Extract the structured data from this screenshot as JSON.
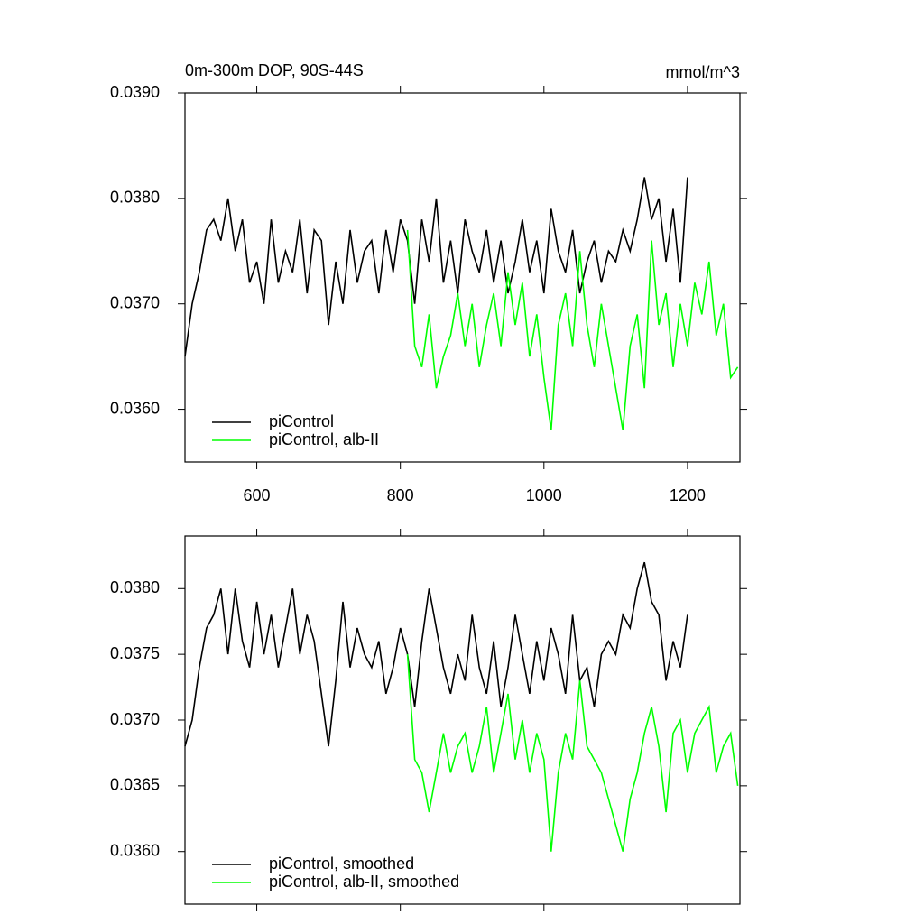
{
  "chart_data": [
    {
      "type": "line",
      "title": "0m-300m DOP, 90S-44S",
      "units": "mmol/m^3",
      "x": [
        500,
        510,
        520,
        530,
        540,
        550,
        560,
        570,
        580,
        590,
        600,
        610,
        620,
        630,
        640,
        650,
        660,
        670,
        680,
        690,
        700,
        710,
        720,
        730,
        740,
        750,
        760,
        770,
        780,
        790,
        800,
        810,
        820,
        830,
        840,
        850,
        860,
        870,
        880,
        890,
        900,
        910,
        920,
        930,
        940,
        950,
        960,
        970,
        980,
        990,
        1000,
        1010,
        1020,
        1030,
        1040,
        1050,
        1060,
        1070,
        1080,
        1090,
        1100,
        1110,
        1120,
        1130,
        1140,
        1150,
        1160,
        1170,
        1180,
        1190,
        1200,
        1210,
        1220,
        1230,
        1240,
        1250,
        1260,
        1270
      ],
      "series": [
        {
          "name": "piControl",
          "color": "#000000",
          "values": [
            0.0365,
            0.037,
            0.0373,
            0.0377,
            0.0378,
            0.0376,
            0.038,
            0.0375,
            0.0378,
            0.0372,
            0.0374,
            0.037,
            0.0378,
            0.0372,
            0.0375,
            0.0373,
            0.0378,
            0.0371,
            0.0377,
            0.0376,
            0.0368,
            0.0374,
            0.037,
            0.0377,
            0.0372,
            0.0375,
            0.0376,
            0.0371,
            0.0377,
            0.0373,
            0.0378,
            0.0376,
            0.037,
            0.0378,
            0.0374,
            0.038,
            0.0372,
            0.0376,
            0.0371,
            0.0378,
            0.0375,
            0.0373,
            0.0377,
            0.0372,
            0.0376,
            0.0371,
            0.0374,
            0.0378,
            0.0373,
            0.0376,
            0.0371,
            0.0379,
            0.0375,
            0.0373,
            0.0377,
            0.0371,
            0.0374,
            0.0376,
            0.0372,
            0.0375,
            0.0374,
            0.0377,
            0.0375,
            0.0378,
            0.0382,
            0.0378,
            0.038,
            0.0374,
            0.0379,
            0.0372,
            0.0382,
            null,
            null,
            null,
            null,
            null,
            null,
            null
          ]
        },
        {
          "name": "piControl, alb-II",
          "color": "#00ff00",
          "values": [
            null,
            null,
            null,
            null,
            null,
            null,
            null,
            null,
            null,
            null,
            null,
            null,
            null,
            null,
            null,
            null,
            null,
            null,
            null,
            null,
            null,
            null,
            null,
            null,
            null,
            null,
            null,
            null,
            null,
            null,
            null,
            0.0377,
            0.0366,
            0.0364,
            0.0369,
            0.0362,
            0.0365,
            0.0367,
            0.0371,
            0.0366,
            0.037,
            0.0364,
            0.0368,
            0.0371,
            0.0366,
            0.0373,
            0.0368,
            0.0372,
            0.0365,
            0.0369,
            0.0363,
            0.0358,
            0.0368,
            0.0371,
            0.0366,
            0.0375,
            0.0368,
            0.0364,
            0.037,
            0.0366,
            0.0362,
            0.0358,
            0.0366,
            0.0369,
            0.0362,
            0.0376,
            0.0368,
            0.0371,
            0.0364,
            0.037,
            0.0366,
            0.0372,
            0.0369,
            0.0374,
            0.0367,
            0.037,
            0.0363,
            0.0364
          ]
        }
      ],
      "xlim": [
        500,
        1273
      ],
      "xticks": [
        600,
        800,
        1000,
        1200
      ],
      "show_xtick_labels": true,
      "ylim": [
        0.0355,
        0.039
      ],
      "yticks": [
        {
          "value": 0.036,
          "label": "0.0360"
        },
        {
          "value": 0.037,
          "label": "0.0370"
        },
        {
          "value": 0.038,
          "label": "0.0380"
        },
        {
          "value": 0.039,
          "label": "0.0390"
        }
      ],
      "legend": "lower-left"
    },
    {
      "type": "line",
      "x": [
        500,
        510,
        520,
        530,
        540,
        550,
        560,
        570,
        580,
        590,
        600,
        610,
        620,
        630,
        640,
        650,
        660,
        670,
        680,
        690,
        700,
        710,
        720,
        730,
        740,
        750,
        760,
        770,
        780,
        790,
        800,
        810,
        820,
        830,
        840,
        850,
        860,
        870,
        880,
        890,
        900,
        910,
        920,
        930,
        940,
        950,
        960,
        970,
        980,
        990,
        1000,
        1010,
        1020,
        1030,
        1040,
        1050,
        1060,
        1070,
        1080,
        1090,
        1100,
        1110,
        1120,
        1130,
        1140,
        1150,
        1160,
        1170,
        1180,
        1190,
        1200,
        1210,
        1220,
        1230,
        1240,
        1250,
        1260,
        1270
      ],
      "series": [
        {
          "name": "piControl, smoothed",
          "color": "#000000",
          "values": [
            0.0368,
            0.037,
            0.0374,
            0.0377,
            0.0378,
            0.038,
            0.0375,
            0.038,
            0.0376,
            0.0374,
            0.0379,
            0.0375,
            0.0378,
            0.0374,
            0.0377,
            0.038,
            0.0375,
            0.0378,
            0.0376,
            0.0372,
            0.0368,
            0.0373,
            0.0379,
            0.0374,
            0.0377,
            0.0375,
            0.0374,
            0.0376,
            0.0372,
            0.0374,
            0.0377,
            0.0375,
            0.0371,
            0.0376,
            0.038,
            0.0377,
            0.0374,
            0.0372,
            0.0375,
            0.0373,
            0.0378,
            0.0374,
            0.0372,
            0.0376,
            0.0371,
            0.0374,
            0.0378,
            0.0375,
            0.0372,
            0.0376,
            0.0373,
            0.0377,
            0.0375,
            0.0372,
            0.0378,
            0.0373,
            0.0374,
            0.0371,
            0.0375,
            0.0376,
            0.0375,
            0.0378,
            0.0377,
            0.038,
            0.0382,
            0.0379,
            0.0378,
            0.0373,
            0.0376,
            0.0374,
            0.0378,
            null,
            null,
            null,
            null,
            null,
            null,
            null
          ]
        },
        {
          "name": "piControl, alb-II, smoothed",
          "color": "#00ff00",
          "values": [
            null,
            null,
            null,
            null,
            null,
            null,
            null,
            null,
            null,
            null,
            null,
            null,
            null,
            null,
            null,
            null,
            null,
            null,
            null,
            null,
            null,
            null,
            null,
            null,
            null,
            null,
            null,
            null,
            null,
            null,
            null,
            0.0375,
            0.0367,
            0.0366,
            0.0363,
            0.0366,
            0.0369,
            0.0366,
            0.0368,
            0.0369,
            0.0366,
            0.0368,
            0.0371,
            0.0366,
            0.0369,
            0.0372,
            0.0367,
            0.037,
            0.0366,
            0.0369,
            0.0367,
            0.036,
            0.0366,
            0.0369,
            0.0367,
            0.0373,
            0.0368,
            0.0367,
            0.0366,
            0.0364,
            0.0362,
            0.036,
            0.0364,
            0.0366,
            0.0369,
            0.0371,
            0.0368,
            0.0363,
            0.0369,
            0.037,
            0.0366,
            0.0369,
            0.037,
            0.0371,
            0.0366,
            0.0368,
            0.0369,
            0.0365
          ]
        }
      ],
      "xlim": [
        500,
        1273
      ],
      "xticks": [
        600,
        800,
        1000,
        1200
      ],
      "show_xtick_labels": false,
      "ylim": [
        0.0356,
        0.0384
      ],
      "yticks": [
        {
          "value": 0.036,
          "label": "0.0360"
        },
        {
          "value": 0.0365,
          "label": "0.0365"
        },
        {
          "value": 0.037,
          "label": "0.0370"
        },
        {
          "value": 0.0375,
          "label": "0.0375"
        },
        {
          "value": 0.038,
          "label": "0.0380"
        }
      ],
      "legend": "lower-left"
    }
  ]
}
